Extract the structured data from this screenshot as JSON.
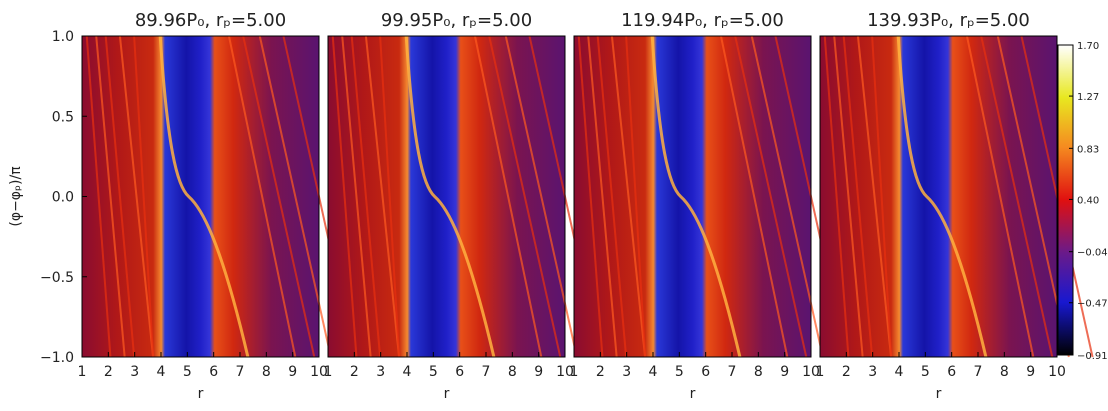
{
  "chart_data": [
    {
      "type": "heatmap",
      "title": "89.96P₀, rₚ=5.00",
      "x_label": "r",
      "y_label": "(φ−φₚ)/π",
      "xlim": [
        1,
        10
      ],
      "xticks": [
        1,
        2,
        3,
        4,
        5,
        6,
        7,
        8,
        9,
        10
      ],
      "ylim": [
        -1,
        1
      ],
      "yticks": [
        {
          "value": -1,
          "label": "−1.0"
        },
        {
          "value": -0.5,
          "label": "−0.5"
        },
        {
          "value": 0,
          "label": "0.0"
        },
        {
          "value": 0.5,
          "label": "0.5"
        },
        {
          "value": 1,
          "label": "1.0"
        }
      ]
    },
    {
      "type": "heatmap",
      "title": "99.95P₀, rₚ=5.00",
      "x_label": "r",
      "xlim": [
        1,
        10
      ],
      "xticks": [
        1,
        2,
        3,
        4,
        5,
        6,
        7,
        8,
        9,
        10
      ],
      "ylim": [
        -1,
        1
      ]
    },
    {
      "type": "heatmap",
      "title": "119.94P₀, rₚ=5.00",
      "x_label": "r",
      "xlim": [
        1,
        10
      ],
      "xticks": [
        1,
        2,
        3,
        4,
        5,
        6,
        7,
        8,
        9,
        10
      ],
      "ylim": [
        -1,
        1
      ]
    },
    {
      "type": "heatmap",
      "title": "139.93P₀, rₚ=5.00",
      "x_label": "r",
      "xlim": [
        1,
        10
      ],
      "xticks": [
        1,
        2,
        3,
        4,
        5,
        6,
        7,
        8,
        9,
        10
      ],
      "ylim": [
        -1,
        1
      ],
      "colorbar": {
        "lim": [
          -0.91,
          1.7
        ],
        "ticks": [
          {
            "value": -0.91,
            "label": "−0.91"
          },
          {
            "value": -0.47,
            "label": "−0.47"
          },
          {
            "value": -0.04,
            "label": "−0.04"
          },
          {
            "value": 0.4,
            "label": "0.40"
          },
          {
            "value": 0.83,
            "label": "0.83"
          },
          {
            "value": 1.27,
            "label": "1.27"
          },
          {
            "value": 1.7,
            "label": "1.70"
          }
        ]
      }
    }
  ]
}
